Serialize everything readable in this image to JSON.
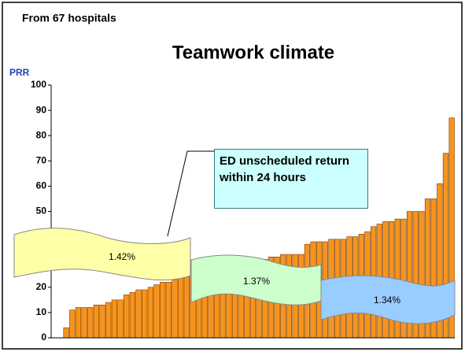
{
  "chart_data": {
    "type": "bar",
    "title": "Teamwork climate",
    "subtitle": "From 67 hospitals",
    "y_label": "PRR",
    "values": [
      0,
      0,
      4,
      11,
      12,
      12,
      12,
      13,
      13,
      14,
      15,
      15,
      17,
      18,
      19,
      19,
      20,
      21,
      22,
      22,
      23,
      24,
      25,
      25,
      26,
      26,
      27,
      27,
      28,
      28,
      29,
      29,
      29,
      30,
      31,
      31,
      32,
      32,
      33,
      33,
      33,
      33,
      37,
      38,
      38,
      38,
      39,
      39,
      39,
      40,
      40,
      41,
      42,
      44,
      45,
      46,
      46,
      47,
      47,
      50,
      50,
      50,
      55,
      55,
      61,
      73,
      87
    ],
    "color": "#f7941d",
    "ylim": [
      0,
      100
    ],
    "yticks": [
      0,
      10,
      20,
      30,
      40,
      50,
      60,
      70,
      80,
      90,
      100
    ],
    "grid": false,
    "annotations": {
      "callout": "ED unscheduled return within 24 hours",
      "banners": [
        "1.42%",
        "1.37%",
        "1.34%"
      ]
    }
  }
}
